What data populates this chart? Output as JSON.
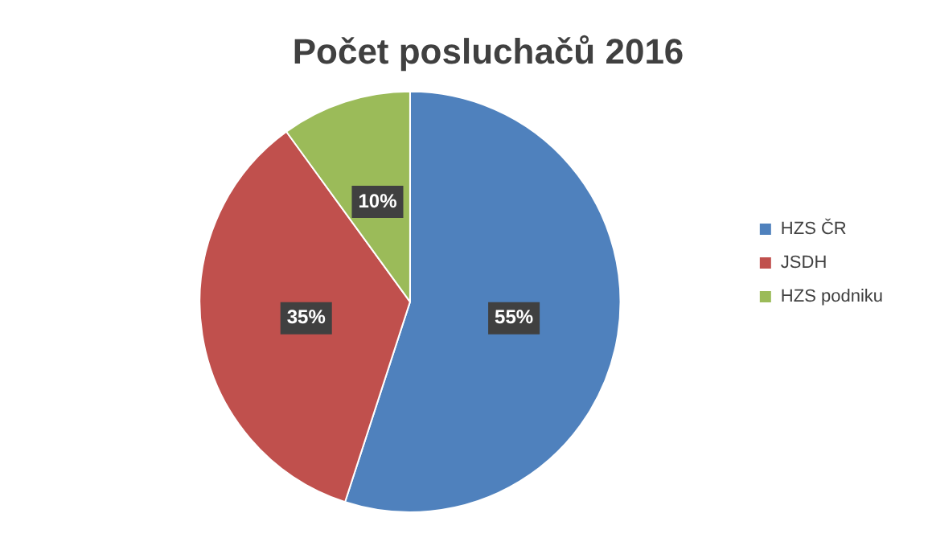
{
  "chart_data": {
    "type": "pie",
    "title": "Počet posluchačů 2016",
    "categories": [
      "HZS ČR",
      "JSDH",
      "HZS podniku"
    ],
    "values": [
      55,
      35,
      10
    ],
    "colors": [
      "#4f81bd",
      "#c0504d",
      "#9bbb59"
    ],
    "value_labels": [
      "55%",
      "35%",
      "10%"
    ],
    "legend": "right"
  }
}
